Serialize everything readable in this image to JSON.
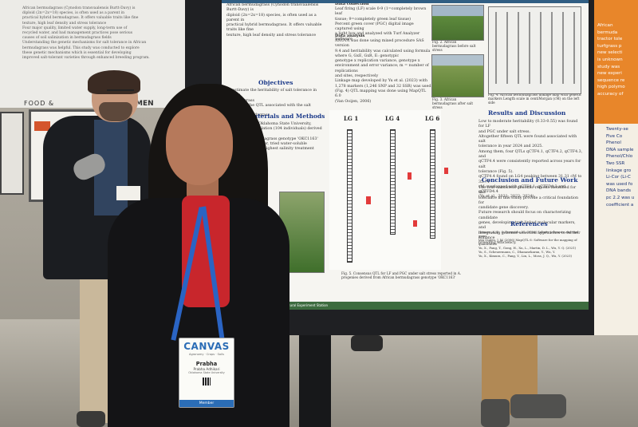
{
  "background": {
    "food_sign": "FOOD &",
    "men_sign": "MEN",
    "left_poster_text": [
      "African bermudagrass (Cynodon transvaalensis Burtt-Davy) is",
      "diploid (2n=2x=18) species, is often used as a parent in",
      "practical hybrid bermudagrass. It offers valuable traits like fine",
      "texture, high leaf density and stress tolerance",
      "Four major quality, limited water supply, long-term use of",
      "recycled water, and bad management practices pose serious",
      "causes of soil salinization in bermudagrass fields",
      "Understanding the genetic mechanisms for salt tolerance in African",
      "bermudagrass was helpful. This study was conducted to explore",
      "these genetic mechanisms which is essential for developing",
      "improved salt-tolerant varieties through enhanced breeding program."
    ]
  },
  "poster": {
    "objectives_heading": "Objectives",
    "objectives_text": [
      "To estimate the heritability of salt tolerance in African",
      "bermudagrass",
      "To identify the QTL associated with the salt tolerance in",
      "African bermudagrass"
    ],
    "materials_heading": "Materials and Methods",
    "materials_text": [
      "Plant materials, Oklahoma State University,",
      "(1) Mapping population (104 individuals) derived from",
      "the African bermudagrass genotype 'OKC1163'",
      "(2) Using fresh water, tried water-soluble",
      "(3) The lowest and highest salinity treatment",
      "was Fisher Scientific",
      "Conducted by Mussa"
    ],
    "data_collection_heading": "Data collection",
    "data_collection_text": [
      "Leaf firing (LF) scale 0-9 (1=completely brown leaf",
      "tissue; 9=completely green leaf tissue)",
      "Percent green cover (PGC) digital image captured using",
      "a light box and analyzed with Turf Analyzer Software"
    ],
    "data_analysis_heading": "Data analysis",
    "data_analysis_text": [
      "ANOVA was done using mixed procedure SAS version",
      "9.4 and heritability was calculated using formula",
      "where G, GxE, GxR, E: genotypic",
      "genotype x replication variance, genotype x",
      "environment and error variance; m = number of replications",
      "and sites, respectively",
      "Linkage map developed by Yu et al. (2023) with",
      "1,278 markers (1,246 SNP and 32 SSR) was used",
      "(Fig. 4) QTL mapping was done using MapQTL 6.0",
      "(Van Ooijen, 2006)"
    ],
    "fig2_caption": "Fig. 2. African bermudagrass before salt stress",
    "fig3_caption": "Fig. 3. African bermudagrass after salt stress",
    "fig4_caption": "Fig. 4. African bermudagrass linkage map with genetic markers Length scale in centiMorgan (cM) on the left side",
    "lg_labels": [
      "LG 1",
      "LG 4",
      "LG 6"
    ],
    "fig5_caption": "Fig. 5. Consensus QTL for LF and PGC under salt stress reported in A. progenies derived from African bermudagrass genotype 'OKC1163'",
    "results_heading": "Results and Discussion",
    "results_text": [
      "Low to moderate heritability (0.33-0.55) was found for LF",
      "and PGC under salt stress.",
      "Altogether fifteen QTL were found associated with salt",
      "tolerance in year 2024 and 2025.",
      "Among them, four QTLs qCTF4.1, qCTF4.2, qCTF4.3, and",
      "qCTF4.4 were consistently reported across years for salt",
      "tolerance (Fig. 5).",
      "qCTF4.4 found on LG4 peaking between 31.31 cM to 35.74",
      "cM overlapped with qCTF4.1, qCTFD4.3 and qCTFD4.4",
      "(Yu et al., 2021; 2022; 2024)."
    ],
    "conclusion_heading": "Conclusion and Future Work",
    "conclusion_text": [
      "The four consistent genomic regions identified for salt",
      "tolerance in this study provide a critical foundation for",
      "candidate gene discovery.",
      "Future research should focus on characterizing candidate",
      "genes, developing trait-linked molecular markers, and",
      "integrating genomic selection approaches to further enhance",
      "breeding efficiency."
    ],
    "references_heading": "References",
    "references_text": [
      "Hanson, A. B., & Fernando, M. (2006) Salinity tolerance and turf grass",
      "Van Ooijen, J. W. (2006) MapQTL 6: Software for the mapping of quantitative",
      "Yu, X., Fang, T., Gong, H., Xu, L., Martin, D. L., Wu, Y. Q. (2021)",
      "Yu, S., Scheuermann, C., Dhanasekaran, Y., Wu, Y.",
      "Yu, X., Kimura, C., Fang, Y., Lin, L., Moss, J. Q., Wu, Y. (2023)"
    ],
    "bottom_strip": "Acknowledgements  Oklahoma Agricultural Experiment Station"
  },
  "right_poster": {
    "lines": [
      "Twenty-se",
      "Five Co",
      "Phenol",
      "DNA sample",
      "Phenol/Chlo",
      "Two SSR",
      "linkage gro",
      "Li-Cor (Li-C",
      "was used fo",
      "DNA bands",
      "pc 2.2 was u",
      "coefficient a"
    ],
    "top_lines": [
      "African",
      "bermuda",
      "tractor tole",
      "turfgrass p",
      "new selecti",
      "is unknown",
      "study was",
      "new experi",
      "sequence re",
      "high polymo",
      "accuracy of"
    ]
  },
  "badge": {
    "title": "CANVAS",
    "subtitle": "Agronomy · Crops · Soils",
    "name": "Prabha",
    "full_name": "Prabha Adhikari",
    "institution": "Oklahoma State University",
    "role": "Member"
  }
}
